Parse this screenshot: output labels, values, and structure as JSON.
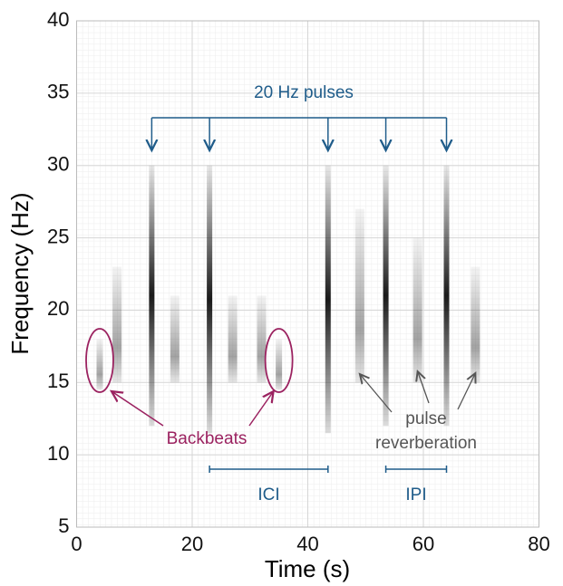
{
  "chart_data": {
    "type": "spectrogram",
    "xlabel": "Time (s)",
    "ylabel": "Frequency (Hz)",
    "xlim": [
      0,
      80
    ],
    "ylim": [
      5,
      40
    ],
    "xticks": [
      0,
      20,
      40,
      60,
      80
    ],
    "yticks": [
      5,
      10,
      15,
      20,
      25,
      30,
      35,
      40
    ],
    "grid": true,
    "color": "#1a1a1a",
    "pulses": {
      "x": [
        13,
        23,
        43.5,
        53.5,
        64
      ],
      "low": [
        12,
        11.5,
        11.5,
        12,
        12
      ],
      "high": [
        30,
        30,
        30,
        30,
        30
      ]
    },
    "backbeats": {
      "x": [
        4,
        35
      ],
      "low": [
        14.5,
        14.5
      ],
      "high": [
        18,
        18
      ]
    },
    "reverberation": {
      "x": [
        7,
        17,
        27,
        32,
        49,
        59,
        69
      ],
      "low": [
        15,
        15,
        15,
        15,
        15,
        15,
        15
      ],
      "high": [
        23,
        21,
        21,
        21,
        27,
        25,
        23
      ]
    },
    "annotations": {
      "pulses": "20 Hz pulses",
      "backbeats": "Backbeats",
      "reverberation_1": "pulse",
      "reverberation_2": "reverberation",
      "ici": "ICI",
      "ipi": "IPI"
    }
  }
}
